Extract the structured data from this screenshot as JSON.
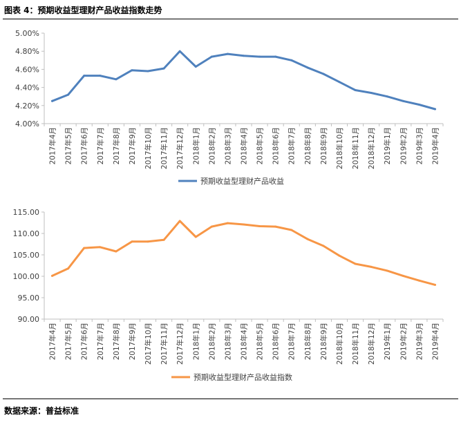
{
  "header": {
    "title": "图表 4：预期收益型理财产品收益指数走势"
  },
  "footer": {
    "source": "数据来源：普益标准"
  },
  "colors": {
    "series1": "#4f81bd",
    "series2": "#f79646",
    "axis": "#bfbfbf",
    "text": "#404040"
  },
  "chart_data": [
    {
      "type": "line",
      "title": "",
      "categories": [
        "2017年4月",
        "2017年5月",
        "2017年6月",
        "2017年7月",
        "2017年8月",
        "2017年9月",
        "2017年10月",
        "2017年11月",
        "2017年12月",
        "2018年1月",
        "2018年2月",
        "2018年3月",
        "2018年4月",
        "2018年5月",
        "2018年6月",
        "2018年7月",
        "2018年8月",
        "2018年9月",
        "2018年10月",
        "2018年11月",
        "2018年12月",
        "2019年1月",
        "2019年2月",
        "2019年3月",
        "2019年4月"
      ],
      "series": [
        {
          "name": "预期收益型理财产品收益",
          "values": [
            4.25,
            4.32,
            4.53,
            4.53,
            4.49,
            4.59,
            4.58,
            4.61,
            4.8,
            4.63,
            4.74,
            4.77,
            4.75,
            4.74,
            4.74,
            4.7,
            4.62,
            4.55,
            4.46,
            4.37,
            4.34,
            4.3,
            4.25,
            4.21,
            4.16
          ]
        }
      ],
      "yticks": [
        "4.00%",
        "4.20%",
        "4.40%",
        "4.60%",
        "4.80%",
        "5.00%"
      ],
      "ylim": [
        4.0,
        5.0
      ],
      "legend": "bottom-center",
      "grid": false
    },
    {
      "type": "line",
      "title": "",
      "categories": [
        "2017年4月",
        "2017年5月",
        "2017年6月",
        "2017年7月",
        "2017年8月",
        "2017年9月",
        "2017年10月",
        "2017年11月",
        "2017年12月",
        "2018年1月",
        "2018年2月",
        "2018年3月",
        "2018年4月",
        "2018年5月",
        "2018年6月",
        "2018年7月",
        "2018年8月",
        "2018年9月",
        "2018年10月",
        "2018年11月",
        "2018年12月",
        "2019年1月",
        "2019年2月",
        "2019年3月",
        "2019年4月"
      ],
      "series": [
        {
          "name": "预期收益型理财产品收益指数",
          "values": [
            100.1,
            101.8,
            106.6,
            106.8,
            105.8,
            108.1,
            108.1,
            108.5,
            112.9,
            109.2,
            111.6,
            112.4,
            112.1,
            111.7,
            111.6,
            110.8,
            108.7,
            107.1,
            104.8,
            102.9,
            102.2,
            101.3,
            100.1,
            99.0,
            98.0
          ]
        }
      ],
      "yticks": [
        "90.00",
        "95.00",
        "100.00",
        "105.00",
        "110.00",
        "115.00"
      ],
      "ylim": [
        90,
        115
      ],
      "legend": "bottom-center",
      "grid": false
    }
  ]
}
